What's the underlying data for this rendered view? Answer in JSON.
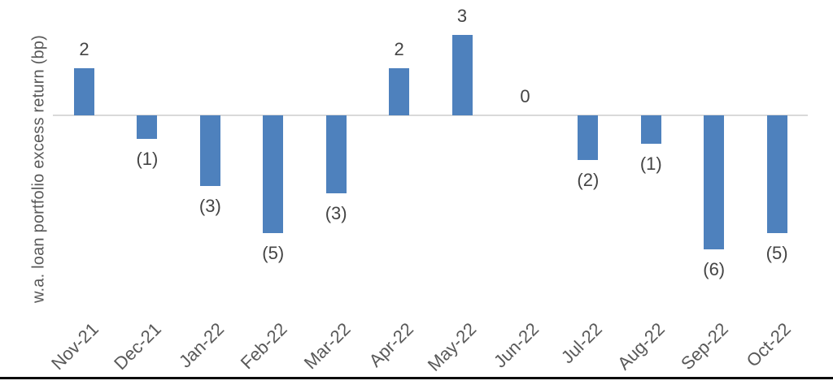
{
  "chart_data": {
    "type": "bar",
    "title": "",
    "xlabel": "",
    "ylabel": "w.a. loan portfolio excess return (bp)",
    "categories": [
      "Nov-21",
      "Dec-21",
      "Jan-22",
      "Feb-22",
      "Mar-22",
      "Apr-22",
      "May-22",
      "Jun-22",
      "Jul-22",
      "Aug-22",
      "Sep-22",
      "Oct-22"
    ],
    "values": [
      2,
      -1,
      -3,
      -5,
      -3.3,
      2,
      3.4,
      0,
      -1.9,
      -1.2,
      -5.7,
      -5
    ],
    "value_labels": [
      "2",
      "(1)",
      "(3)",
      "(5)",
      "(3)",
      "2",
      "3",
      "0",
      "(2)",
      "(1)",
      "(6)",
      "(5)"
    ],
    "negative_format": "parentheses",
    "ylim": [
      -6.5,
      4
    ],
    "grid": false,
    "legend": "none",
    "colors": {
      "bar": "#4E81BD",
      "zero_axis_line": "#D9D9D9",
      "value_label": "#444444",
      "tick_label": "#595959",
      "axis_title": "#595959",
      "bottom_border": "#0A0A0A",
      "background": "#FFFFFF"
    }
  }
}
